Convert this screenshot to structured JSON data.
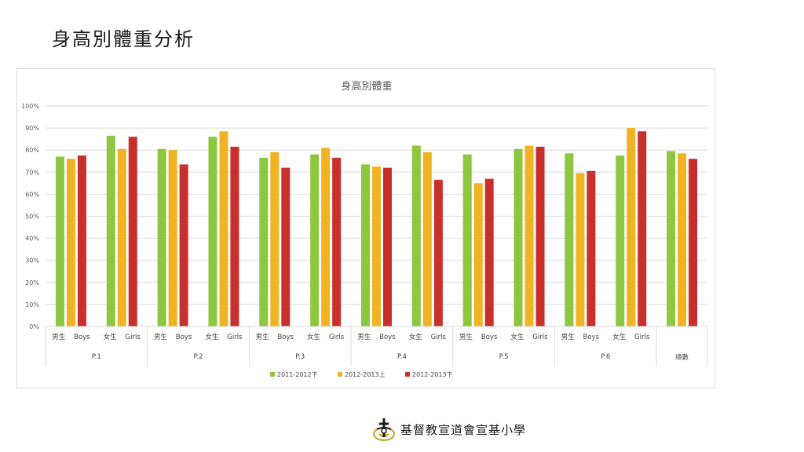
{
  "slide": {
    "title": "身高別體重分析",
    "school_name": "基督教宣道會宣基小學"
  },
  "chart_data": {
    "type": "bar",
    "title": "身高別體重",
    "xlabel": "",
    "ylabel": "",
    "ylim": [
      0,
      100
    ],
    "ytick_values": [
      0,
      10,
      20,
      30,
      40,
      50,
      60,
      70,
      80,
      90,
      100
    ],
    "ytick_labels": [
      "0%",
      "10%",
      "20%",
      "30%",
      "40%",
      "50%",
      "60%",
      "70%",
      "80%",
      "90%",
      "100%"
    ],
    "grid": true,
    "legend_position": "bottom",
    "categories": [
      {
        "sub": "男生    Boys",
        "group": "P.1"
      },
      {
        "sub": "女生    Girls",
        "group": "P.1"
      },
      {
        "sub": "男生    Boys",
        "group": "P.2"
      },
      {
        "sub": "女生    Girls",
        "group": "P.2"
      },
      {
        "sub": "男生    Boys",
        "group": "P.3"
      },
      {
        "sub": "女生    Girls",
        "group": "P.3"
      },
      {
        "sub": "男生    Boys",
        "group": "P.4"
      },
      {
        "sub": "女生    Girls",
        "group": "P.4"
      },
      {
        "sub": "男生    Boys",
        "group": "P.5"
      },
      {
        "sub": "女生    Girls",
        "group": "P.5"
      },
      {
        "sub": "男生    Boys",
        "group": "P.6"
      },
      {
        "sub": "女生    Girls",
        "group": "P.6"
      },
      {
        "sub": "",
        "group": "總數"
      }
    ],
    "series": [
      {
        "name": "2011-2012下",
        "color": "#8dc63f",
        "values": [
          77,
          86.5,
          80.5,
          86,
          76.5,
          78,
          73.5,
          82,
          78,
          80.5,
          78.5,
          77.5,
          79.5
        ]
      },
      {
        "name": "2012-2013上",
        "color": "#f0b323",
        "values": [
          76,
          80.5,
          80,
          88.5,
          79,
          81,
          72.5,
          79,
          65,
          82,
          69.5,
          90,
          78.5
        ]
      },
      {
        "name": "2012-2013下",
        "color": "#c8302b",
        "values": [
          77.5,
          86,
          73.5,
          81.5,
          72,
          76.5,
          72,
          66.5,
          67,
          81.5,
          70.5,
          88.5,
          76
        ]
      }
    ]
  }
}
